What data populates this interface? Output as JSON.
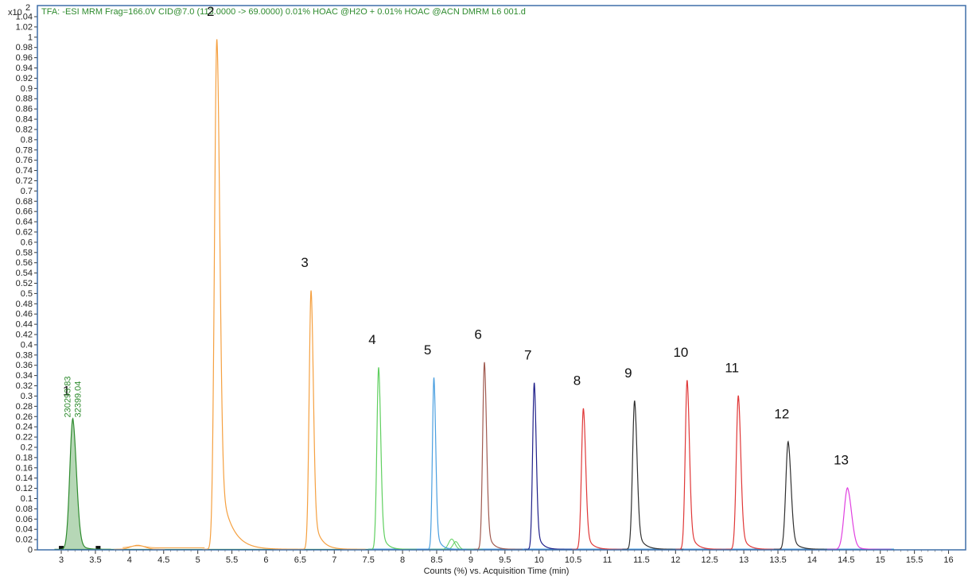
{
  "chart_data": {
    "type": "line",
    "title": "TFA: -ESI MRM Frag=166.0V CID@7.0 (113.0000 -> 69.0000) 0.01% HOAC @H2O + 0.01% HOAC @ACN DMRM L6 001.d",
    "y_multiplier_label": "x10",
    "y_multiplier_exp": "2",
    "xlabel": "Counts (%) vs. Acquisition Time (min)",
    "xlim": [
      2.65,
      16.25
    ],
    "ylim": [
      0,
      1.04
    ],
    "x_ticks": [
      "3",
      "3.5",
      "4",
      "4.5",
      "5",
      "5.5",
      "6",
      "6.5",
      "7",
      "7.5",
      "8",
      "8.5",
      "9",
      "9.5",
      "10",
      "10.5",
      "11",
      "11.5",
      "12",
      "12.5",
      "13",
      "13.5",
      "14",
      "14.5",
      "15",
      "15.5",
      "16"
    ],
    "y_ticks": [
      "0",
      "0.02",
      "0.04",
      "0.06",
      "0.08",
      "0.1",
      "0.12",
      "0.14",
      "0.16",
      "0.18",
      "0.2",
      "0.22",
      "0.24",
      "0.26",
      "0.28",
      "0.3",
      "0.32",
      "0.34",
      "0.36",
      "0.38",
      "0.4",
      "0.42",
      "0.44",
      "0.46",
      "0.48",
      "0.5",
      "0.52",
      "0.54",
      "0.56",
      "0.58",
      "0.6",
      "0.62",
      "0.64",
      "0.66",
      "0.68",
      "0.7",
      "0.72",
      "0.74",
      "0.76",
      "0.78",
      "0.8",
      "0.82",
      "0.84",
      "0.86",
      "0.88",
      "0.9",
      "0.92",
      "0.94",
      "0.96",
      "0.98",
      "1",
      "1.02",
      "1.04"
    ],
    "integration_labels": [
      "230293.83",
      "32399.04"
    ],
    "peaks": [
      {
        "label": "1",
        "rt": 3.17,
        "height": 0.255,
        "color": "#2e8b2e",
        "sigma": 0.045,
        "tail": 0.07,
        "filled": true
      },
      {
        "label": "2",
        "rt": 5.28,
        "height": 0.995,
        "color": "#f5a040",
        "sigma": 0.035,
        "tail": 0.16
      },
      {
        "label": "3",
        "rt": 6.66,
        "height": 0.505,
        "color": "#f5a040",
        "sigma": 0.028,
        "tail": 0.1
      },
      {
        "label": "4",
        "rt": 7.65,
        "height": 0.355,
        "color": "#5fcf5f",
        "sigma": 0.026,
        "tail": 0.07
      },
      {
        "label": "5",
        "rt": 8.46,
        "height": 0.335,
        "color": "#4a9fe0",
        "sigma": 0.022,
        "tail": 0.06
      },
      {
        "label": "6",
        "rt": 9.2,
        "height": 0.365,
        "color": "#a05a50",
        "sigma": 0.026,
        "tail": 0.07
      },
      {
        "label": "7",
        "rt": 9.93,
        "height": 0.325,
        "color": "#20208a",
        "sigma": 0.024,
        "tail": 0.07
      },
      {
        "label": "8",
        "rt": 10.65,
        "height": 0.275,
        "color": "#e03838",
        "sigma": 0.028,
        "tail": 0.08
      },
      {
        "label": "9",
        "rt": 11.4,
        "height": 0.29,
        "color": "#303030",
        "sigma": 0.03,
        "tail": 0.09
      },
      {
        "label": "10",
        "rt": 12.17,
        "height": 0.33,
        "color": "#e03838",
        "sigma": 0.028,
        "tail": 0.08
      },
      {
        "label": "11",
        "rt": 12.92,
        "height": 0.3,
        "color": "#e03838",
        "sigma": 0.03,
        "tail": 0.08
      },
      {
        "label": "12",
        "rt": 13.65,
        "height": 0.21,
        "color": "#303030",
        "sigma": 0.035,
        "tail": 0.09
      },
      {
        "label": "13",
        "rt": 14.52,
        "height": 0.12,
        "color": "#e040e0",
        "sigma": 0.05,
        "tail": 0.08
      }
    ],
    "minor_bumps": [
      {
        "rt": 4.12,
        "height": 0.008,
        "color": "#f5a040",
        "sigma": 0.1
      },
      {
        "rt": 8.72,
        "height": 0.02,
        "color": "#5fcf5f",
        "sigma": 0.045
      },
      {
        "rt": 8.78,
        "height": 0.015,
        "color": "#5fcf5f",
        "sigma": 0.04
      }
    ],
    "legend": "none",
    "grid": false
  },
  "colors": {
    "frame": "#3e6fa8",
    "title": "#2e8b2e",
    "axis_text": "#222222"
  }
}
